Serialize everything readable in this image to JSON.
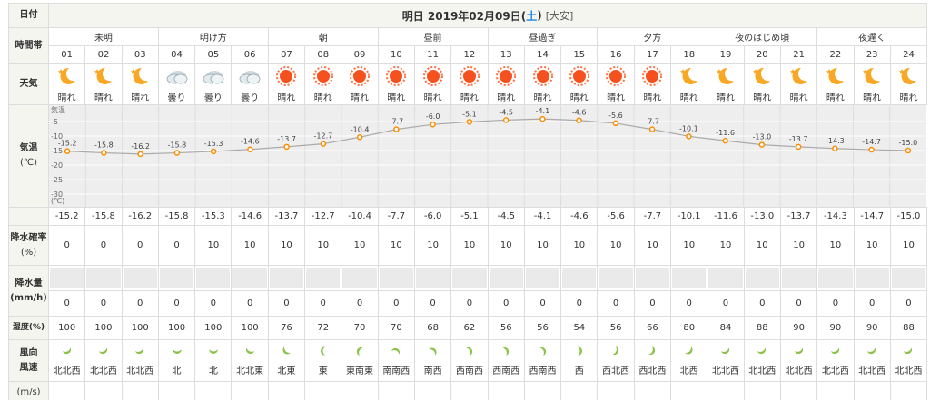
{
  "header": {
    "date_label": "日付",
    "title_prefix": "明日 2019年02月09日(",
    "weekday": "土",
    "title_suffix": ")",
    "rokuyo": "[大安]"
  },
  "labels": {
    "period": "時間帯",
    "weather": "天気",
    "temp": "気温",
    "temp_unit": "(℃)",
    "pop": "降水確率",
    "pop_unit": "(%)",
    "precip": "降水量",
    "precip_unit": "(mm/h)",
    "humidity": "湿度(%)",
    "wind1": "風向",
    "wind2": "風速",
    "wind_unit": "(m/s)"
  },
  "periods": [
    "未明",
    "明け方",
    "朝",
    "昼前",
    "昼過ぎ",
    "夕方",
    "夜のはじめ頃",
    "夜遅く"
  ],
  "hours": [
    "01",
    "02",
    "03",
    "04",
    "05",
    "06",
    "07",
    "08",
    "09",
    "10",
    "11",
    "12",
    "13",
    "14",
    "15",
    "16",
    "17",
    "18",
    "19",
    "20",
    "21",
    "22",
    "23",
    "24"
  ],
  "weather": [
    {
      "icon": "moon-icon",
      "text": "晴れ"
    },
    {
      "icon": "moon-icon",
      "text": "晴れ"
    },
    {
      "icon": "moon-icon",
      "text": "晴れ"
    },
    {
      "icon": "cloud-icon",
      "text": "曇り"
    },
    {
      "icon": "cloud-icon",
      "text": "曇り"
    },
    {
      "icon": "cloud-icon",
      "text": "曇り"
    },
    {
      "icon": "sun-icon",
      "text": "晴れ"
    },
    {
      "icon": "sun-icon",
      "text": "晴れ"
    },
    {
      "icon": "sun-icon",
      "text": "晴れ"
    },
    {
      "icon": "sun-icon",
      "text": "晴れ"
    },
    {
      "icon": "sun-icon",
      "text": "晴れ"
    },
    {
      "icon": "sun-icon",
      "text": "晴れ"
    },
    {
      "icon": "sun-icon",
      "text": "晴れ"
    },
    {
      "icon": "sun-icon",
      "text": "晴れ"
    },
    {
      "icon": "sun-icon",
      "text": "晴れ"
    },
    {
      "icon": "sun-icon",
      "text": "晴れ"
    },
    {
      "icon": "sun-icon",
      "text": "晴れ"
    },
    {
      "icon": "moon-icon",
      "text": "晴れ"
    },
    {
      "icon": "moon-icon",
      "text": "晴れ"
    },
    {
      "icon": "moon-icon",
      "text": "晴れ"
    },
    {
      "icon": "moon-icon",
      "text": "晴れ"
    },
    {
      "icon": "moon-icon",
      "text": "晴れ"
    },
    {
      "icon": "moon-icon",
      "text": "晴れ"
    },
    {
      "icon": "moon-icon",
      "text": "晴れ"
    }
  ],
  "chart_data": {
    "type": "line",
    "y_axis_label": "気温",
    "y_unit": "(℃)",
    "yticks": [
      "-5",
      "-10",
      "-15",
      "-20",
      "-25",
      "-30"
    ],
    "ylim": [
      -35,
      0
    ],
    "x": [
      "01",
      "02",
      "03",
      "04",
      "05",
      "06",
      "07",
      "08",
      "09",
      "10",
      "11",
      "12",
      "13",
      "14",
      "15",
      "16",
      "17",
      "18",
      "19",
      "20",
      "21",
      "22",
      "23",
      "24"
    ],
    "values": [
      -15.2,
      -15.8,
      -16.2,
      -15.8,
      -15.3,
      -14.6,
      -13.7,
      -12.7,
      -10.4,
      -7.7,
      -6.0,
      -5.1,
      -4.5,
      -4.1,
      -4.6,
      -5.6,
      -7.7,
      -10.1,
      -11.6,
      -13.0,
      -13.7,
      -14.3,
      -14.7,
      -15.0
    ],
    "line_color": "#aaaaaa",
    "marker_color": "#ff8c00"
  },
  "temps": [
    "-15.2",
    "-15.8",
    "-16.2",
    "-15.8",
    "-15.3",
    "-14.6",
    "-13.7",
    "-12.7",
    "-10.4",
    "-7.7",
    "-6.0",
    "-5.1",
    "-4.5",
    "-4.1",
    "-4.6",
    "-5.6",
    "-7.7",
    "-10.1",
    "-11.6",
    "-13.0",
    "-13.7",
    "-14.3",
    "-14.7",
    "-15.0"
  ],
  "pop": [
    "0",
    "0",
    "0",
    "0",
    "10",
    "10",
    "10",
    "10",
    "10",
    "10",
    "10",
    "10",
    "10",
    "10",
    "10",
    "10",
    "10",
    "10",
    "10",
    "10",
    "10",
    "10",
    "10",
    "10"
  ],
  "precip": [
    "0",
    "0",
    "0",
    "0",
    "0",
    "0",
    "0",
    "0",
    "0",
    "0",
    "0",
    "0",
    "0",
    "0",
    "0",
    "0",
    "0",
    "0",
    "0",
    "0",
    "0",
    "0",
    "0",
    "0"
  ],
  "humidity": [
    "100",
    "100",
    "100",
    "100",
    "100",
    "100",
    "76",
    "72",
    "70",
    "70",
    "68",
    "62",
    "56",
    "56",
    "54",
    "56",
    "66",
    "80",
    "84",
    "88",
    "90",
    "90",
    "90",
    "88"
  ],
  "wind_dir": [
    "北北西",
    "北北西",
    "北北西",
    "北",
    "北",
    "北北東",
    "北東",
    "東",
    "東南東",
    "南南西",
    "南西",
    "西南西",
    "西南西",
    "西南西",
    "西",
    "西北西",
    "西北西",
    "北西",
    "北北西",
    "北北西",
    "北北西",
    "北北西",
    "北北西",
    "北北西"
  ],
  "wind_arrow_color": "#8bc34a"
}
